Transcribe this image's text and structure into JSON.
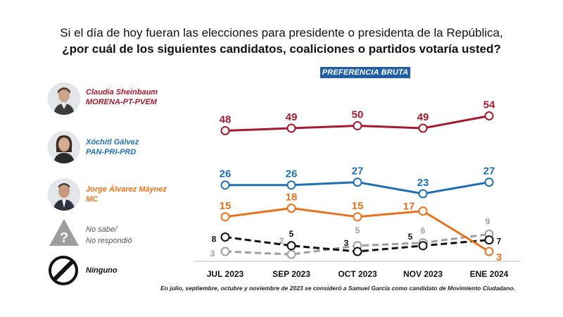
{
  "title_line1": "Si el día de hoy fueran las elecciones para presidente o presidenta de la República,",
  "title_line2": "¿por cuál de los siguientes candidatos, coaliciones o partidos votaría usted?",
  "badge": "PREFERENCIA BRUTA",
  "legend": {
    "sheinbaum": {
      "name": "Claudia Sheinbaum",
      "party": "MORENA-PT-PVEM",
      "color": "#a6192e"
    },
    "galvez": {
      "name": "Xóchitl Gálvez",
      "party": "PAN-PRI-PRD",
      "color": "#1f6fb5"
    },
    "maynez": {
      "name": "Jorge Álvarez Máynez",
      "party": "MC",
      "color": "#e8731c"
    },
    "nosabe": {
      "line1": "No sabe/",
      "line2": "No respondió",
      "color": "#9e9e9e"
    },
    "ninguno": {
      "label": "Ninguno",
      "color": "#111111"
    }
  },
  "footnote": "En julio, septiembre, octubre y noviembre de 2023 se consideró a Samuel García como candidato de Movimiento Ciudadano.",
  "chart_data": {
    "type": "line",
    "categories": [
      "JUL 2023",
      "SEP 2023",
      "OCT 2023",
      "NOV 2023",
      "ENE 2024"
    ],
    "series": [
      {
        "name": "Claudia Sheinbaum",
        "values": [
          48,
          49,
          50,
          49,
          54
        ],
        "color": "#a6192e",
        "style": "solid"
      },
      {
        "name": "Xóchitl Gálvez",
        "values": [
          26,
          26,
          27,
          23,
          27
        ],
        "color": "#1f6fb5",
        "style": "solid"
      },
      {
        "name": "Jorge Álvarez Máynez",
        "values": [
          15,
          18,
          15,
          17,
          3
        ],
        "color": "#e8731c",
        "style": "solid"
      },
      {
        "name": "No sabe/ No respondió",
        "values": [
          3,
          2,
          5,
          6,
          9
        ],
        "color": "#9e9e9e",
        "style": "dashed"
      },
      {
        "name": "Ninguno",
        "values": [
          8,
          5,
          3,
          5,
          7
        ],
        "color": "#111111",
        "style": "dashed"
      }
    ]
  }
}
